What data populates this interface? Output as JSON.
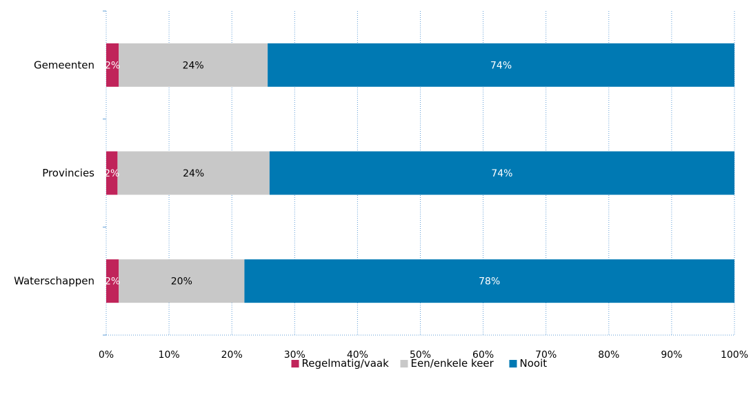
{
  "chart_data": {
    "type": "bar",
    "orientation": "horizontal",
    "stacked": true,
    "title": "",
    "xlabel": "",
    "ylabel": "",
    "xlim": [
      0,
      100
    ],
    "x_ticks": [
      "0%",
      "10%",
      "20%",
      "30%",
      "40%",
      "50%",
      "60%",
      "70%",
      "80%",
      "90%",
      "100%"
    ],
    "grid": "vertical dotted",
    "legend_position": "bottom",
    "categories": [
      "Gemeenten",
      "Provincies",
      "Waterschappen"
    ],
    "series": [
      {
        "name": "Regelmatig/vaak",
        "color": "#c0245a",
        "label_color": "#ffffff",
        "values": [
          2,
          1.8,
          2
        ],
        "labels": [
          "2%",
          "2%",
          "2%"
        ]
      },
      {
        "name": "Een/enkele keer",
        "color": "#c8c8c8",
        "label_color": "#000000",
        "values": [
          23.7,
          24.2,
          20
        ],
        "labels": [
          "24%",
          "24%",
          "20%"
        ]
      },
      {
        "name": "Nooit",
        "color": "#0079b3",
        "label_color": "#ffffff",
        "values": [
          74.3,
          74,
          78
        ],
        "labels": [
          "74%",
          "74%",
          "78%"
        ]
      }
    ]
  }
}
